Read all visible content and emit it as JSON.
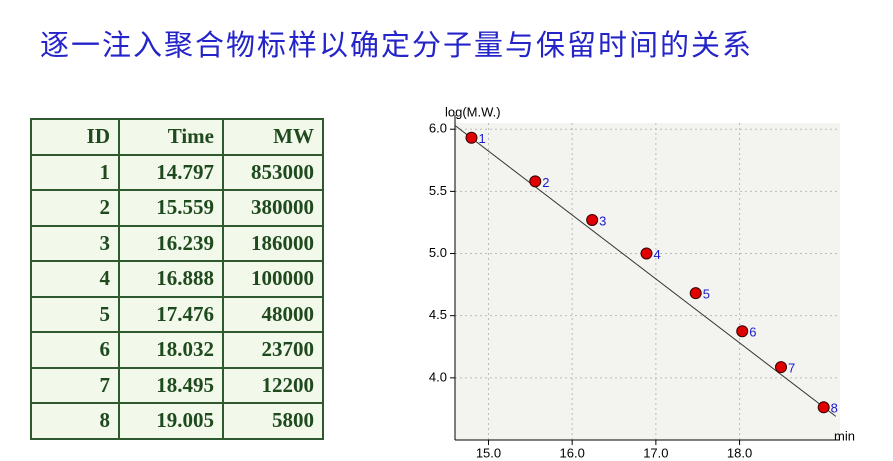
{
  "title": "逐一注入聚合物标样以确定分子量与保留时间的关系",
  "table": {
    "header": [
      "ID",
      "Time",
      "MW"
    ],
    "rows": [
      [
        1,
        14.797,
        853000
      ],
      [
        2,
        15.559,
        380000
      ],
      [
        3,
        16.239,
        186000
      ],
      [
        4,
        16.888,
        100000
      ],
      [
        5,
        17.476,
        48000
      ],
      [
        6,
        18.032,
        23700
      ],
      [
        7,
        18.495,
        12200
      ],
      [
        8,
        19.005,
        5800
      ]
    ]
  },
  "chart_data": {
    "type": "scatter",
    "y_label": "log(M.W.)",
    "x_label": "min",
    "x": [
      14.797,
      15.559,
      16.239,
      16.888,
      17.476,
      18.032,
      18.495,
      19.005
    ],
    "y": [
      5.931,
      5.58,
      5.27,
      5.0,
      4.681,
      4.375,
      4.086,
      3.763
    ],
    "point_labels": [
      "1",
      "2",
      "3",
      "4",
      "5",
      "6",
      "7",
      "8"
    ],
    "color": "#e00000",
    "fit_line": {
      "x": [
        14.6,
        19.15
      ],
      "y": [
        6.03,
        3.69
      ]
    },
    "xlim": [
      14.6,
      19.2
    ],
    "ylim": [
      3.5,
      6.05
    ],
    "xticks": [
      {
        "value": 15,
        "label": "15.0"
      },
      {
        "value": 16,
        "label": "16.0"
      },
      {
        "value": 17,
        "label": "17.0"
      },
      {
        "value": 18,
        "label": "18.0"
      }
    ],
    "yticks": [
      {
        "value": 4,
        "label": "4.0"
      },
      4.5,
      {
        "value": 5,
        "label": "5.0"
      },
      5.5,
      {
        "value": 6,
        "label": "6.0"
      }
    ],
    "grid": true
  }
}
